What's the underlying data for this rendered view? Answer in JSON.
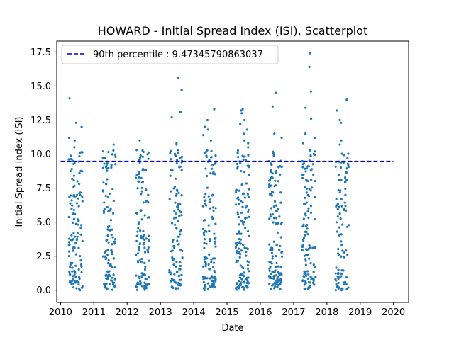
{
  "chart_data": {
    "type": "scatter",
    "title": "HOWARD - Initial Spread Index (ISI), Scatterplot",
    "xlabel": "Date",
    "ylabel": "Initial Spread Index (ISI)",
    "xlim": [
      "2009-11-20",
      "2020-06-15"
    ],
    "ylim": [
      -0.9,
      18.3
    ],
    "x_ticks": [
      "2010",
      "2011",
      "2012",
      "2013",
      "2014",
      "2015",
      "2016",
      "2017",
      "2018",
      "2019",
      "2020"
    ],
    "y_ticks": [
      "0.0",
      "2.5",
      "5.0",
      "7.5",
      "10.0",
      "12.5",
      "15.0",
      "17.5"
    ],
    "grid": false,
    "legend_position": "top-left",
    "reference_line": {
      "label": "90th percentile : 9.47345790863037",
      "value": 9.47345790863037,
      "x_start": "2010-01-01",
      "x_end": "2019-12-31",
      "style": "dashed",
      "color": "#0000cc"
    },
    "series_color": "#1f77b4",
    "seasons": [
      {
        "year": 2010,
        "start": "2010-04-01",
        "end": "2010-08-30",
        "n": 120,
        "peaks": [
          14.1,
          12.3,
          12.0,
          11.2,
          11.0,
          10.5
        ]
      },
      {
        "year": 2011,
        "start": "2011-04-10",
        "end": "2011-08-28",
        "n": 110,
        "peaks": [
          10.7,
          10.2,
          9.8
        ]
      },
      {
        "year": 2012,
        "start": "2012-04-05",
        "end": "2012-08-30",
        "n": 120,
        "peaks": [
          11.0,
          10.3,
          9.8
        ]
      },
      {
        "year": 2013,
        "start": "2013-04-05",
        "end": "2013-08-30",
        "n": 110,
        "peaks": [
          15.6,
          14.7,
          13.1,
          12.7,
          10.8,
          10.7
        ]
      },
      {
        "year": 2014,
        "start": "2014-04-10",
        "end": "2014-08-30",
        "n": 120,
        "peaks": [
          13.3,
          12.5,
          12.0,
          11.8,
          11.4,
          11.0
        ]
      },
      {
        "year": 2015,
        "start": "2015-04-05",
        "end": "2015-08-30",
        "n": 140,
        "peaks": [
          13.3,
          13.2,
          13.0,
          12.5,
          12.2,
          11.8,
          11.5,
          11.0,
          10.8,
          10.5
        ]
      },
      {
        "year": 2016,
        "start": "2016-04-05",
        "end": "2016-08-30",
        "n": 130,
        "peaks": [
          14.5,
          13.5,
          11.5,
          11.2,
          10.1
        ]
      },
      {
        "year": 2017,
        "start": "2017-04-05",
        "end": "2017-08-30",
        "n": 120,
        "peaks": [
          17.4,
          16.4,
          14.6,
          13.4,
          12.6,
          11.5,
          11.2,
          10.8,
          10.2
        ]
      },
      {
        "year": 2018,
        "start": "2018-04-05",
        "end": "2018-08-30",
        "n": 95,
        "peaks": [
          14.0,
          13.2,
          12.5,
          12.3,
          11.0,
          10.7
        ]
      }
    ]
  }
}
